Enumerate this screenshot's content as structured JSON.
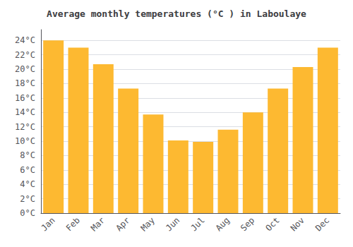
{
  "chart_data": {
    "type": "bar",
    "title": "Average monthly temperatures (°C ) in Laboulaye",
    "categories": [
      "Jan",
      "Feb",
      "Mar",
      "Apr",
      "May",
      "Jun",
      "Jul",
      "Aug",
      "Sep",
      "Oct",
      "Nov",
      "Dec"
    ],
    "values": [
      24.0,
      23.0,
      20.7,
      17.3,
      13.7,
      10.1,
      9.9,
      11.6,
      14.0,
      17.3,
      20.3,
      23.0
    ],
    "color": "#FDB931",
    "ylim": [
      0,
      25.5
    ],
    "yticks": [
      {
        "value": 0,
        "label": "0°C"
      },
      {
        "value": 2,
        "label": "2°C"
      },
      {
        "value": 4,
        "label": "4°C"
      },
      {
        "value": 6,
        "label": "6°C"
      },
      {
        "value": 8,
        "label": "8°C"
      },
      {
        "value": 10,
        "label": "10°C"
      },
      {
        "value": 12,
        "label": "12°C"
      },
      {
        "value": 14,
        "label": "14°C"
      },
      {
        "value": 16,
        "label": "16°C"
      },
      {
        "value": 18,
        "label": "18°C"
      },
      {
        "value": 20,
        "label": "20°C"
      },
      {
        "value": 22,
        "label": "22°C"
      },
      {
        "value": 24,
        "label": "24°C"
      }
    ],
    "grid": true
  }
}
